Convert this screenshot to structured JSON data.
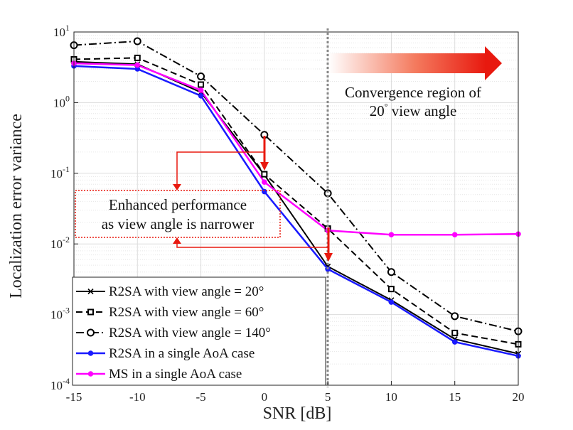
{
  "chart_data": {
    "type": "line",
    "xlabel": "SNR [dB]",
    "ylabel": "Localization error variance",
    "x": [
      -15,
      -10,
      -5,
      0,
      5,
      10,
      15,
      20
    ],
    "xlim": [
      -15,
      20
    ],
    "ylim": [
      0.0001,
      10
    ],
    "yscale": "log",
    "grid": true,
    "x_tick_labels": [
      "-15",
      "-10",
      "-5",
      "0",
      "5",
      "10",
      "15",
      "20"
    ],
    "y_ticks": [
      {
        "value": 0.0001,
        "base": "10",
        "exp": "-4"
      },
      {
        "value": 0.001,
        "base": "10",
        "exp": "-3"
      },
      {
        "value": 0.01,
        "base": "10",
        "exp": "-2"
      },
      {
        "value": 0.1,
        "base": "10",
        "exp": "-1"
      },
      {
        "value": 1,
        "base": "10",
        "exp": "0"
      },
      {
        "value": 10,
        "base": "10",
        "exp": "1"
      }
    ],
    "series": [
      {
        "name": "R2SA with view angle = 20°",
        "color": "#000000",
        "dash": "solid",
        "marker": "x",
        "values": [
          3.8,
          3.5,
          1.4,
          0.095,
          0.0048,
          0.0016,
          0.00045,
          0.00028
        ]
      },
      {
        "name": "R2SA with view angle = 60°",
        "color": "#000000",
        "dash": "dashed",
        "marker": "square",
        "values": [
          4.1,
          4.3,
          1.8,
          0.097,
          0.0165,
          0.0023,
          0.00055,
          0.00038
        ]
      },
      {
        "name": "R2SA with view angle = 140°",
        "color": "#000000",
        "dash": "dashdot",
        "marker": "circle",
        "values": [
          6.5,
          7.4,
          2.35,
          0.35,
          0.052,
          0.004,
          0.00095,
          0.00058
        ]
      },
      {
        "name": "R2SA in a single AoA case",
        "color": "#1a1aff",
        "dash": "solid",
        "marker": "dot",
        "values": [
          3.3,
          3.0,
          1.25,
          0.055,
          0.0044,
          0.0015,
          0.00041,
          0.00026
        ]
      },
      {
        "name": "MS in a single AoA case",
        "color": "#ff00ff",
        "dash": "solid",
        "marker": "dot",
        "values": [
          3.6,
          3.4,
          1.5,
          0.075,
          0.0155,
          0.0135,
          0.0135,
          0.0138
        ]
      }
    ],
    "annotations": {
      "convergence_line_x": 5,
      "convergence_text": [
        "Convergence region of",
        "20",
        "°",
        " view angle"
      ],
      "enhanced_text": [
        "Enhanced performance",
        "as view angle is narrower"
      ],
      "arrow_color": "#e8190f",
      "divider_color": "#888888"
    }
  }
}
